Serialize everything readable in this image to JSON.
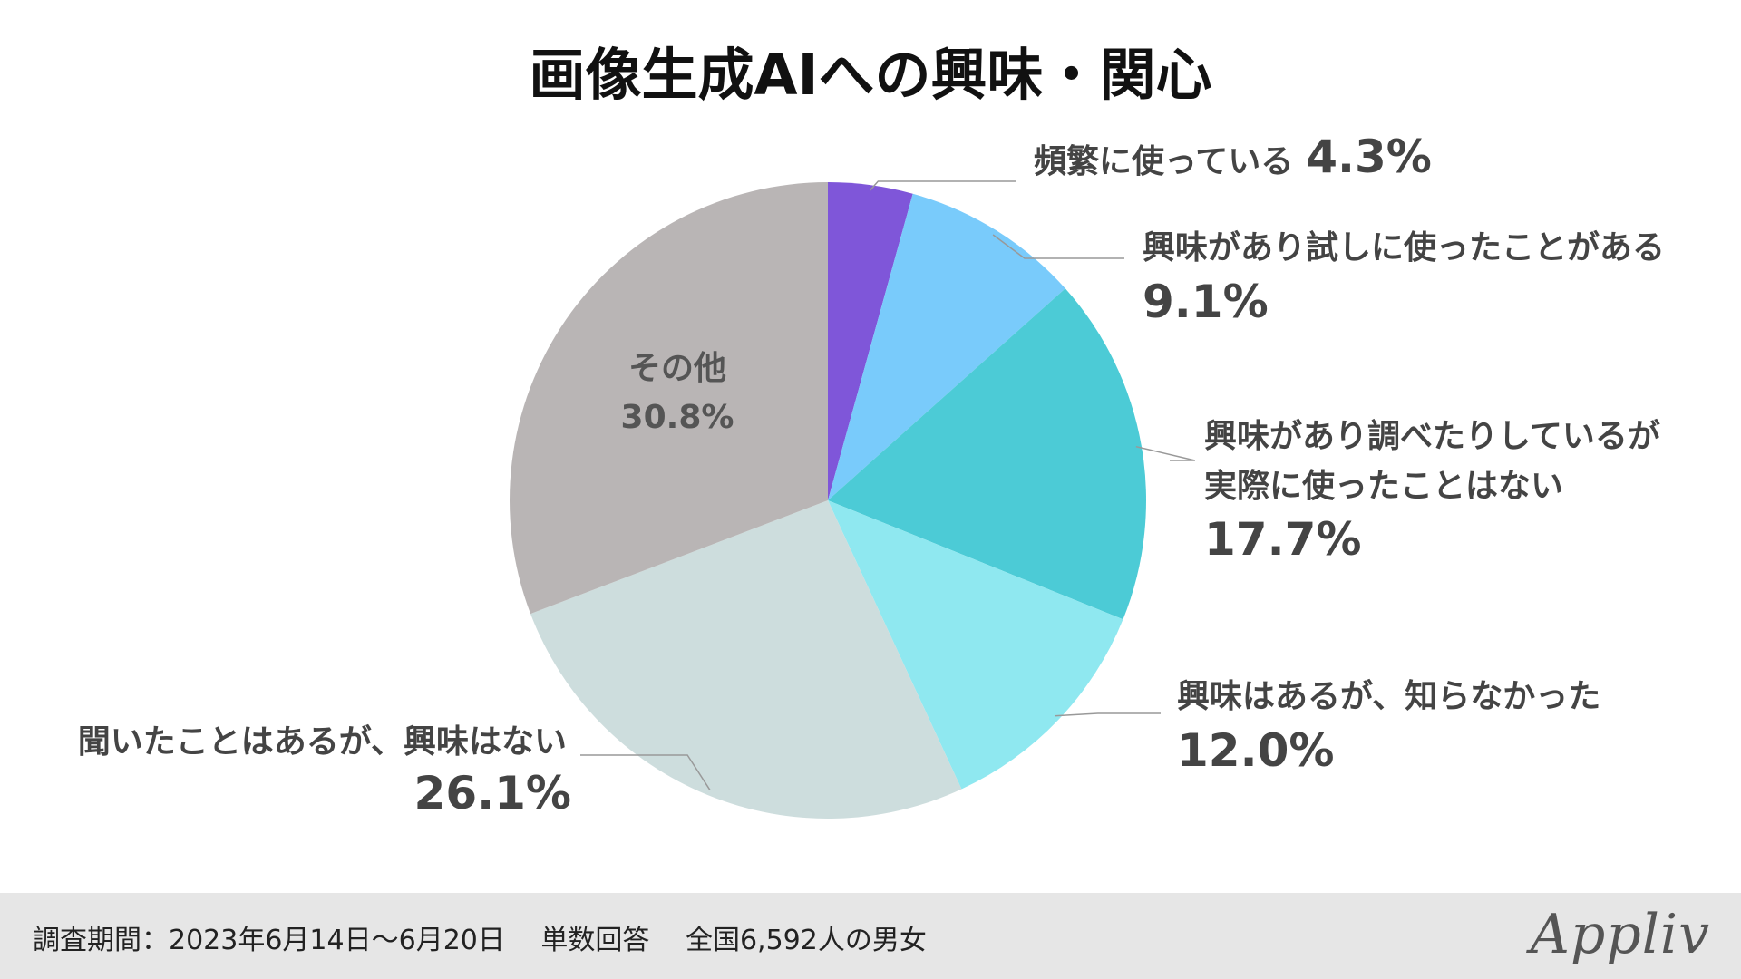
{
  "chart_data": {
    "type": "pie",
    "title": "画像生成AIへの興味・関心",
    "start_angle": "12 o'clock",
    "direction": "clockwise",
    "slices": [
      {
        "label": "頻繁に使っている",
        "value": 4.3,
        "value_label": "4.3%",
        "color": "#7f56d9",
        "label_color": "#444444"
      },
      {
        "label": "興味があり試しに使ったことがある",
        "value": 9.1,
        "value_label": "9.1%",
        "color": "#79cbfb",
        "label_color": "#444444"
      },
      {
        "label": "興味があり調べたりしているが実際に使ったことはない",
        "value": 17.7,
        "value_label": "17.7%",
        "color": "#4ccbd6",
        "label_color": "#444444"
      },
      {
        "label": "興味はあるが、知らなかった",
        "value": 12.0,
        "value_label": "12.0%",
        "color": "#8fe8f0",
        "label_color": "#444444"
      },
      {
        "label": "聞いたことはあるが、興味はない",
        "value": 26.1,
        "value_label": "26.1%",
        "color": "#cddddd",
        "label_color": "#444444"
      },
      {
        "label": "その他",
        "value": 30.8,
        "value_label": "30.8%",
        "color": "#b9b5b5",
        "label_color": "#555555"
      }
    ]
  },
  "footer": {
    "text": "調査期間：2023年6月14日〜6月20日　 単数回答　 全国6,592人の男女",
    "brand": "Appliv"
  }
}
